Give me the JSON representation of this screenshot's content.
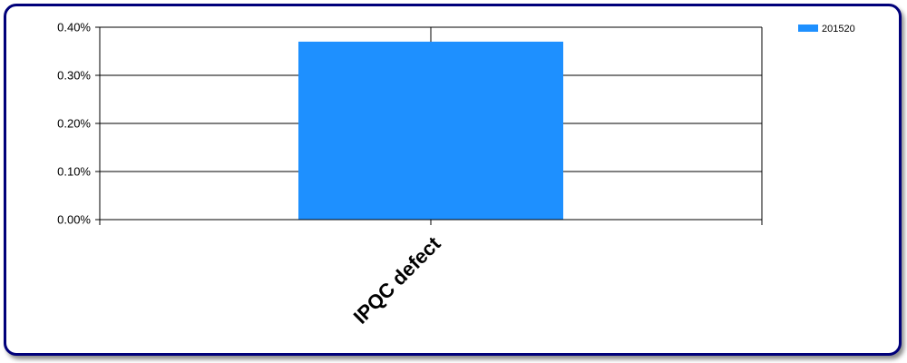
{
  "chart_data": {
    "type": "bar",
    "categories": [
      "IPQC defect"
    ],
    "series": [
      {
        "name": "201520",
        "values": [
          0.0037
        ],
        "color": "#1e90ff"
      }
    ],
    "ylim": [
      0,
      0.004
    ],
    "yticks": [
      0,
      0.001,
      0.002,
      0.003,
      0.004
    ],
    "ytick_labels": [
      "0.00%",
      "0.10%",
      "0.20%",
      "0.30%",
      "0.40%"
    ],
    "title": "",
    "xlabel": "",
    "ylabel": "",
    "grid": true,
    "legend_position": "top-right"
  },
  "colors": {
    "frame_border": "#00007a",
    "axis": "#000000",
    "bar": "#1e90ff"
  }
}
